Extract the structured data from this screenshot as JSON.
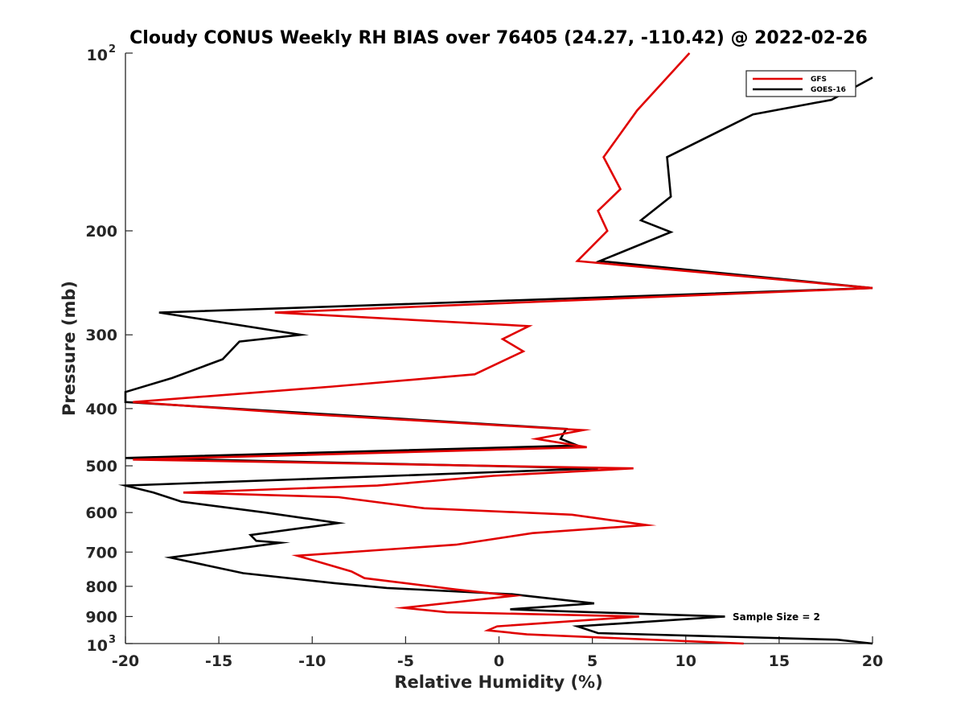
{
  "chart_data": {
    "type": "line",
    "title": "Cloudy CONUS Weekly RH BIAS over 76405 (24.27, -110.42) @ 2022-02-26",
    "xlabel": "Relative Humidity (%)",
    "ylabel": "Pressure (mb)",
    "xlim": [
      -20,
      20
    ],
    "ylim": [
      100,
      1000
    ],
    "y_scale": "log",
    "y_reversed": true,
    "grid": false,
    "legend_position": "top-right",
    "x_ticks": [
      "-20",
      "-15",
      "-10",
      "-5",
      "0",
      "5",
      "10",
      "15",
      "20"
    ],
    "y_ticks": [
      {
        "value": 100,
        "base": "10",
        "exp": "2"
      },
      {
        "value": 200,
        "label": "200"
      },
      {
        "value": 300,
        "label": "300"
      },
      {
        "value": 400,
        "label": "400"
      },
      {
        "value": 500,
        "label": "500"
      },
      {
        "value": 600,
        "label": "600"
      },
      {
        "value": 700,
        "label": "700"
      },
      {
        "value": 800,
        "label": "800"
      },
      {
        "value": 900,
        "label": "900"
      },
      {
        "value": 1000,
        "base": "10",
        "exp": "3"
      }
    ],
    "annotation": "Sample Size = 2",
    "series": [
      {
        "name": "GFS",
        "color": "#e00000",
        "points": [
          [
            10.2,
            100
          ],
          [
            7.4,
            125
          ],
          [
            5.6,
            150
          ],
          [
            6.5,
            170
          ],
          [
            5.3,
            185
          ],
          [
            5.8,
            200
          ],
          [
            4.2,
            225
          ],
          [
            20,
            250
          ],
          [
            -12,
            275
          ],
          [
            1.6,
            290
          ],
          [
            0.2,
            305
          ],
          [
            1.3,
            320
          ],
          [
            -1.3,
            350
          ],
          [
            -8.9,
            367
          ],
          [
            -19.6,
            390
          ],
          [
            -10.7,
            408
          ],
          [
            4.5,
            435
          ],
          [
            2,
            450
          ],
          [
            4.7,
            465
          ],
          [
            -19.6,
            488
          ],
          [
            7.2,
            505
          ],
          [
            -0.3,
            520
          ],
          [
            -6.5,
            540
          ],
          [
            -16.9,
            555
          ],
          [
            -8.6,
            565
          ],
          [
            -4,
            590
          ],
          [
            3.9,
            605
          ],
          [
            7.9,
            630
          ],
          [
            1.8,
            650
          ],
          [
            -2.3,
            680
          ],
          [
            -10.8,
            710
          ],
          [
            -9.8,
            725
          ],
          [
            -7.9,
            755
          ],
          [
            -7.2,
            775
          ],
          [
            -2.3,
            810
          ],
          [
            0.8,
            830
          ],
          [
            -5.1,
            870
          ],
          [
            -2.8,
            885
          ],
          [
            7.5,
            900
          ],
          [
            -0.1,
            935
          ],
          [
            -0.6,
            950
          ],
          [
            1.5,
            965
          ],
          [
            13.1,
            1000
          ]
        ]
      },
      {
        "name": "GOES-16",
        "color": "#000000",
        "points": [
          [
            20,
            110
          ],
          [
            17.8,
            120
          ],
          [
            13.6,
            127
          ],
          [
            9,
            150
          ],
          [
            9.2,
            175
          ],
          [
            7.6,
            192
          ],
          [
            9.2,
            201
          ],
          [
            5.4,
            225
          ],
          [
            20,
            250
          ],
          [
            -18.2,
            275
          ],
          [
            -10.6,
            300
          ],
          [
            -13.9,
            308
          ],
          [
            -14.8,
            330
          ],
          [
            -17.5,
            355
          ],
          [
            -20,
            375
          ],
          [
            -20,
            390
          ],
          [
            -8.6,
            410
          ],
          [
            3.6,
            433
          ],
          [
            3.3,
            450
          ],
          [
            4.2,
            462
          ],
          [
            -20,
            485
          ],
          [
            5.3,
            505
          ],
          [
            -20,
            540
          ],
          [
            -18.5,
            555
          ],
          [
            -17,
            575
          ],
          [
            -12.5,
            600
          ],
          [
            -8.6,
            625
          ],
          [
            -13.3,
            655
          ],
          [
            -13,
            670
          ],
          [
            -11.7,
            675
          ],
          [
            -17.6,
            715
          ],
          [
            -13.7,
            760
          ],
          [
            -8.8,
            790
          ],
          [
            -6,
            805
          ],
          [
            0.7,
            825
          ],
          [
            5.1,
            855
          ],
          [
            0.6,
            875
          ],
          [
            2.7,
            880
          ],
          [
            12.1,
            900
          ],
          [
            4.2,
            935
          ],
          [
            5.3,
            960
          ],
          [
            18.1,
            985
          ],
          [
            20,
            1000
          ]
        ]
      }
    ]
  }
}
